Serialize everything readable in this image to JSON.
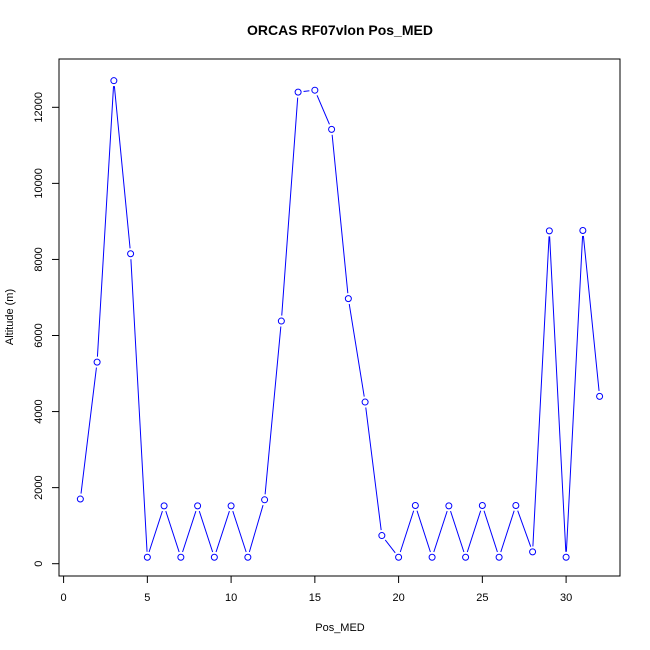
{
  "chart_data": {
    "type": "line",
    "title": "ORCAS RF07vlon Pos_MED",
    "xlabel": "Pos_MED",
    "ylabel": "Altitude (m)",
    "xlim": [
      0,
      33
    ],
    "ylim": [
      0,
      13000
    ],
    "x_ticks": [
      0,
      5,
      10,
      15,
      20,
      25,
      30
    ],
    "y_ticks": [
      0,
      2000,
      4000,
      6000,
      8000,
      10000,
      12000
    ],
    "grid": false,
    "colors": {
      "series": "#0000ff",
      "axis": "#000000",
      "background": "#ffffff"
    },
    "series": [
      {
        "x": [
          1,
          2,
          3,
          4,
          5,
          6,
          7,
          8,
          9,
          10,
          11,
          12,
          13,
          14,
          15,
          16,
          17,
          18,
          19,
          20,
          21,
          22,
          23,
          24,
          25,
          26,
          27,
          28,
          29,
          30,
          31,
          32
        ],
        "y": [
          1700,
          5300,
          12700,
          8150,
          170,
          1520,
          170,
          1520,
          170,
          1520,
          170,
          1680,
          6380,
          12400,
          12450,
          11420,
          6970,
          4250,
          740,
          170,
          1530,
          170,
          1520,
          170,
          1530,
          170,
          1530,
          310,
          8750,
          170,
          8760,
          4400
        ]
      }
    ]
  }
}
